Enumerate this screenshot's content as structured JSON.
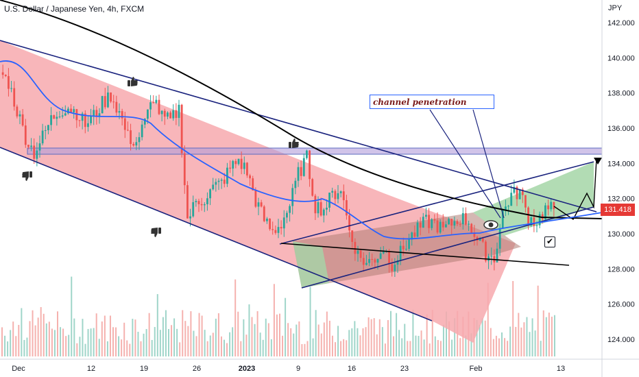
{
  "header": {
    "title": "U.S. Dollar / Japanese Yen, 4h, FXCM"
  },
  "price_axis": {
    "currency": "JPY",
    "last_price": "131.418"
  },
  "annotation": {
    "text": "channel penetration"
  },
  "colors": {
    "bull": "#26a69a",
    "bear": "#ef5350",
    "channel_fill": "#f7a9ae",
    "green_fill": "#a5d6a7",
    "ma_fast": "#2962ff",
    "ma_slow": "#000000",
    "hband": "#b39ddb"
  },
  "chart_data": {
    "type": "candlestick",
    "title": "U.S. Dollar / Japanese Yen, 4h, FXCM",
    "y_axis_label": "JPY",
    "ylim": [
      123.2,
      142.8
    ],
    "y_ticks": [
      "142.000",
      "140.000",
      "138.000",
      "136.000",
      "134.000",
      "132.000",
      "130.000",
      "128.000",
      "126.000",
      "124.000"
    ],
    "x_ticks": [
      "Dec",
      "12",
      "19",
      "26",
      "2023",
      "9",
      "16",
      "23",
      "Feb",
      "13"
    ],
    "last_price": 131.418,
    "series_approx_close": [
      139.2,
      138.6,
      137.0,
      135.5,
      134.6,
      135.5,
      136.5,
      137.0,
      137.2,
      136.9,
      136.2,
      136.7,
      137.4,
      137.9,
      136.9,
      135.5,
      135.2,
      136.3,
      137.8,
      136.6,
      136.4,
      137.1,
      130.8,
      131.8,
      132.0,
      132.6,
      132.9,
      133.7,
      134.2,
      133.5,
      131.9,
      130.8,
      130.1,
      130.6,
      131.6,
      133.4,
      134.3,
      131.6,
      131.4,
      132.2,
      132.6,
      130.2,
      128.8,
      128.3,
      128.6,
      129.2,
      128.3,
      128.9,
      129.7,
      130.2,
      130.7,
      130.6,
      130.2,
      130.6,
      130.9,
      130.7,
      129.6,
      128.9,
      128.6,
      131.2,
      132.2,
      132.4,
      130.9,
      130.7,
      131.4,
      131.4
    ],
    "lines": [
      {
        "kind": "channel-upper",
        "from": [
          "late-Nov",
          141.0
        ],
        "to": [
          "~Feb 20",
          130.0
        ]
      },
      {
        "kind": "channel-lower",
        "from": [
          "late-Nov",
          135.0
        ],
        "to": [
          "~Jan 31",
          125.0
        ]
      },
      {
        "kind": "inner-channel-upper",
        "from": [
          "~Jan 12",
          129.6
        ],
        "to": [
          "~Feb 14",
          134.0
        ]
      },
      {
        "kind": "inner-channel-lower",
        "from": [
          "~Jan 12",
          127.0
        ],
        "to": [
          "~Feb 14",
          131.2
        ]
      }
    ],
    "horizontal_band": [
      134.5,
      134.8
    ],
    "annotations": [
      "channel penetration"
    ],
    "grid": false,
    "legend": "top-left"
  }
}
